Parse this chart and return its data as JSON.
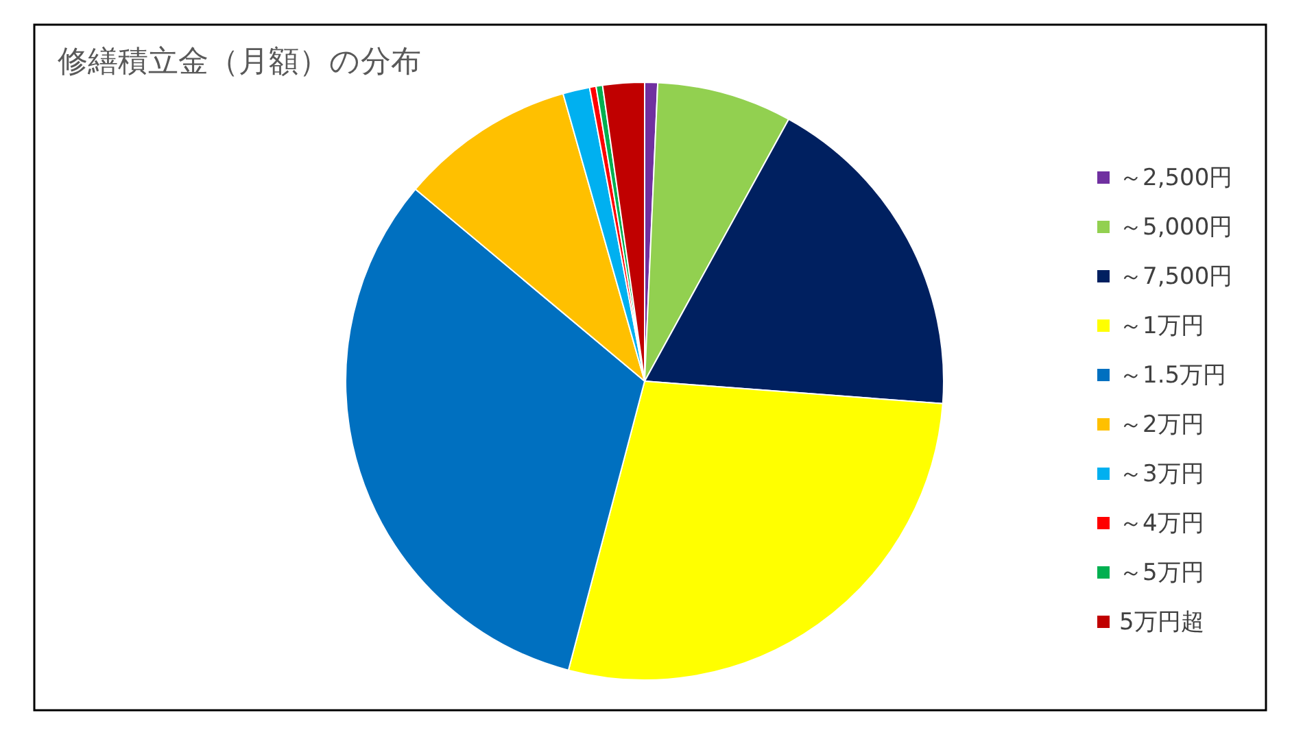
{
  "chart_data": {
    "type": "pie",
    "title": "修繕積立金（月額）の分布",
    "categories": [
      "～2,500円",
      "～5,000円",
      "～7,500円",
      "～1万円",
      "～1.5万円",
      "～2万円",
      "～3万円",
      "～4万円",
      "～5万円",
      "5万円超"
    ],
    "values": [
      0.7,
      7.3,
      18.2,
      27.9,
      32.0,
      9.5,
      1.45,
      0.35,
      0.35,
      2.25
    ],
    "colors": [
      "#7030a0",
      "#92d050",
      "#002060",
      "#ffff00",
      "#0070c0",
      "#ffc000",
      "#00b0f0",
      "#ff0000",
      "#00b050",
      "#c00000"
    ],
    "legend": "right"
  }
}
